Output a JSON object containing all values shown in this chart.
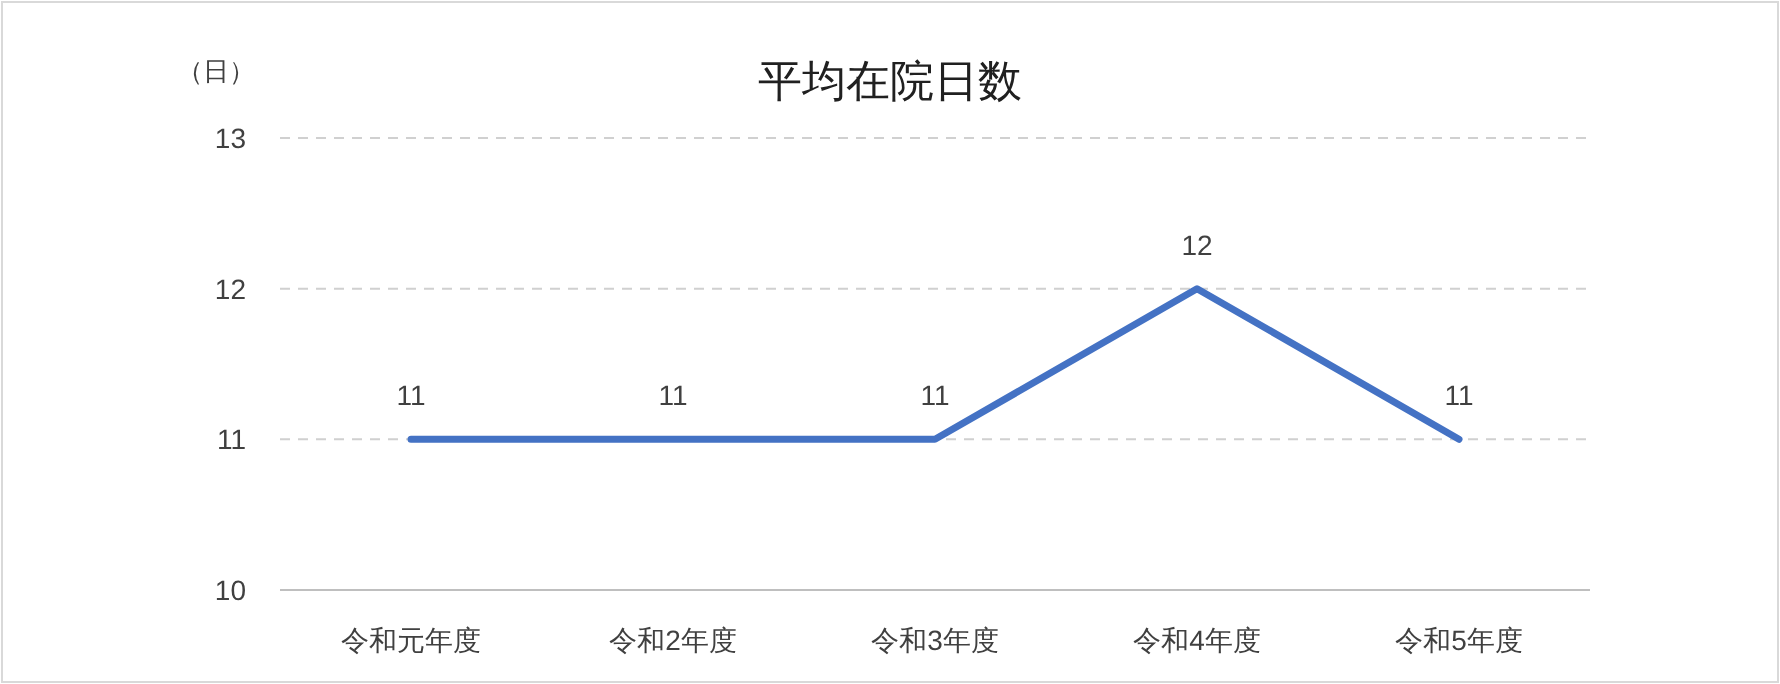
{
  "chart_data": {
    "type": "line",
    "title": "平均在院日数",
    "ylabel": "（日）",
    "categories": [
      "令和元年度",
      "令和2年度",
      "令和3年度",
      "令和4年度",
      "令和5年度"
    ],
    "series": [
      {
        "color": "#4472c4",
        "values": [
          11,
          11,
          11,
          12,
          11
        ]
      }
    ],
    "ylim": [
      10,
      13
    ],
    "yticks": [
      10,
      11,
      12,
      13
    ],
    "grid": "y",
    "data_labels": true,
    "marker": "none",
    "line_style": "solid"
  }
}
